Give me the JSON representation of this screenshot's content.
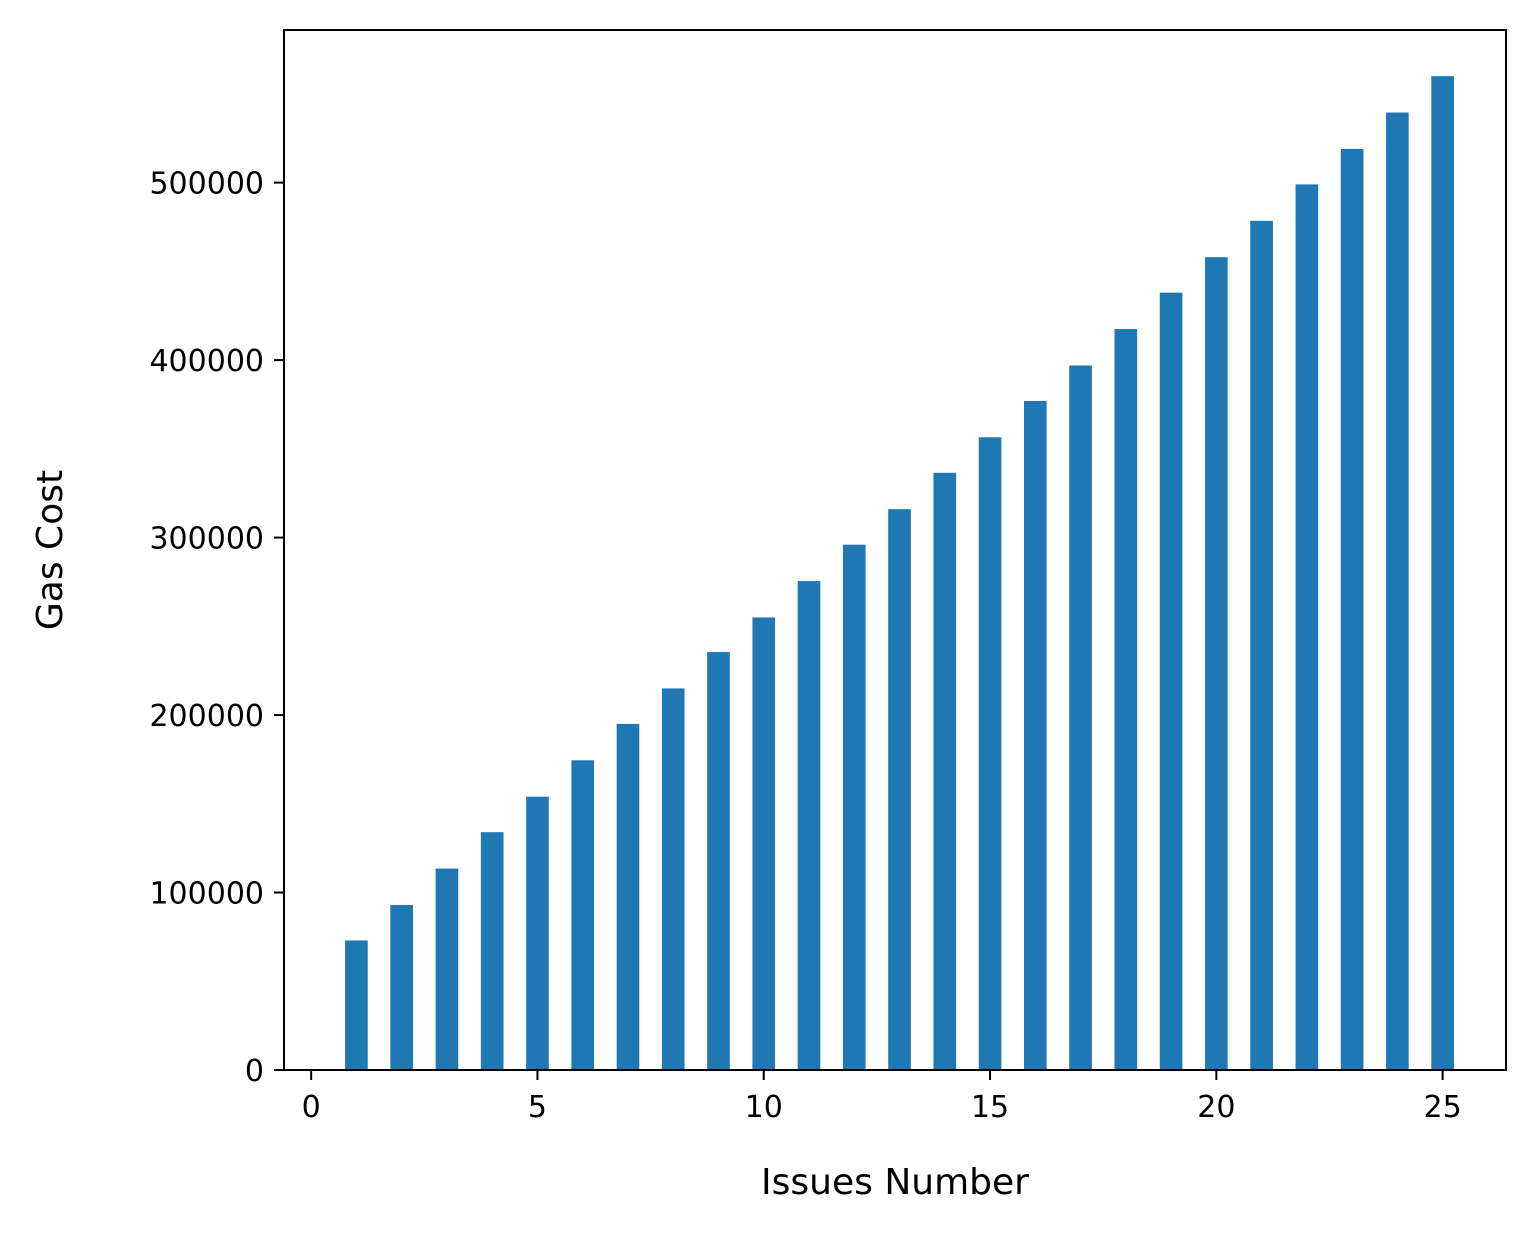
{
  "chart_data": {
    "type": "bar",
    "title": "",
    "xlabel": "Issues Number",
    "ylabel": "Gas Cost",
    "x": [
      1,
      2,
      3,
      4,
      5,
      6,
      7,
      8,
      9,
      10,
      11,
      12,
      13,
      14,
      15,
      16,
      17,
      18,
      19,
      20,
      21,
      22,
      23,
      24,
      25
    ],
    "values": [
      73000,
      93000,
      113500,
      134000,
      154000,
      174500,
      195000,
      215000,
      235500,
      255000,
      275500,
      296000,
      316000,
      336500,
      356500,
      377000,
      397000,
      417500,
      438000,
      458000,
      478500,
      499000,
      519000,
      539500,
      560000
    ],
    "bar_width": 0.5,
    "xlim": [
      -0.6,
      26.4
    ],
    "ylim": [
      0,
      586000
    ],
    "xticks": [
      0,
      5,
      10,
      15,
      20,
      25
    ],
    "yticks": [
      0,
      100000,
      200000,
      300000,
      400000,
      500000
    ],
    "bar_color": "#1f77b4",
    "grid": false,
    "legend": "none"
  }
}
